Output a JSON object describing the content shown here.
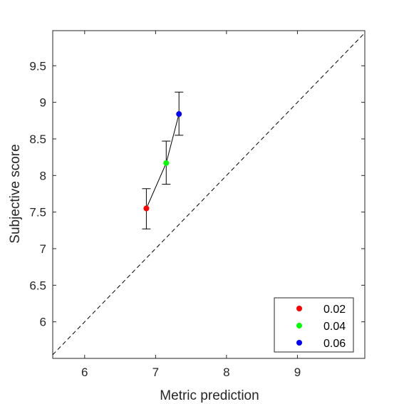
{
  "chart_data": {
    "type": "scatter",
    "title": "",
    "xlabel": "Metric prediction",
    "ylabel": "Subjective score",
    "xlim": [
      5.55,
      9.95
    ],
    "ylim": [
      5.5,
      9.98
    ],
    "xticks": [
      6,
      7,
      8,
      9
    ],
    "yticks": [
      6,
      6.5,
      7,
      7.5,
      8,
      8.5,
      9,
      9.5
    ],
    "xtick_labels": [
      "6",
      "7",
      "8",
      "9"
    ],
    "ytick_labels": [
      "6",
      "6.5",
      "7",
      "7.5",
      "8",
      "8.5",
      "9",
      "9.5"
    ],
    "grid": false,
    "legend_position": "bottom-right",
    "identity_line": true,
    "connecting_line": true,
    "series": [
      {
        "name": "0.02",
        "x": 6.87,
        "y": 7.55,
        "err_low": 7.27,
        "err_high": 7.82,
        "color": "#ff0000"
      },
      {
        "name": "0.04",
        "x": 7.15,
        "y": 8.17,
        "err_low": 7.88,
        "err_high": 8.47,
        "color": "#00ff00"
      },
      {
        "name": "0.06",
        "x": 7.33,
        "y": 8.84,
        "err_low": 8.55,
        "err_high": 9.14,
        "color": "#0000ff"
      }
    ]
  }
}
